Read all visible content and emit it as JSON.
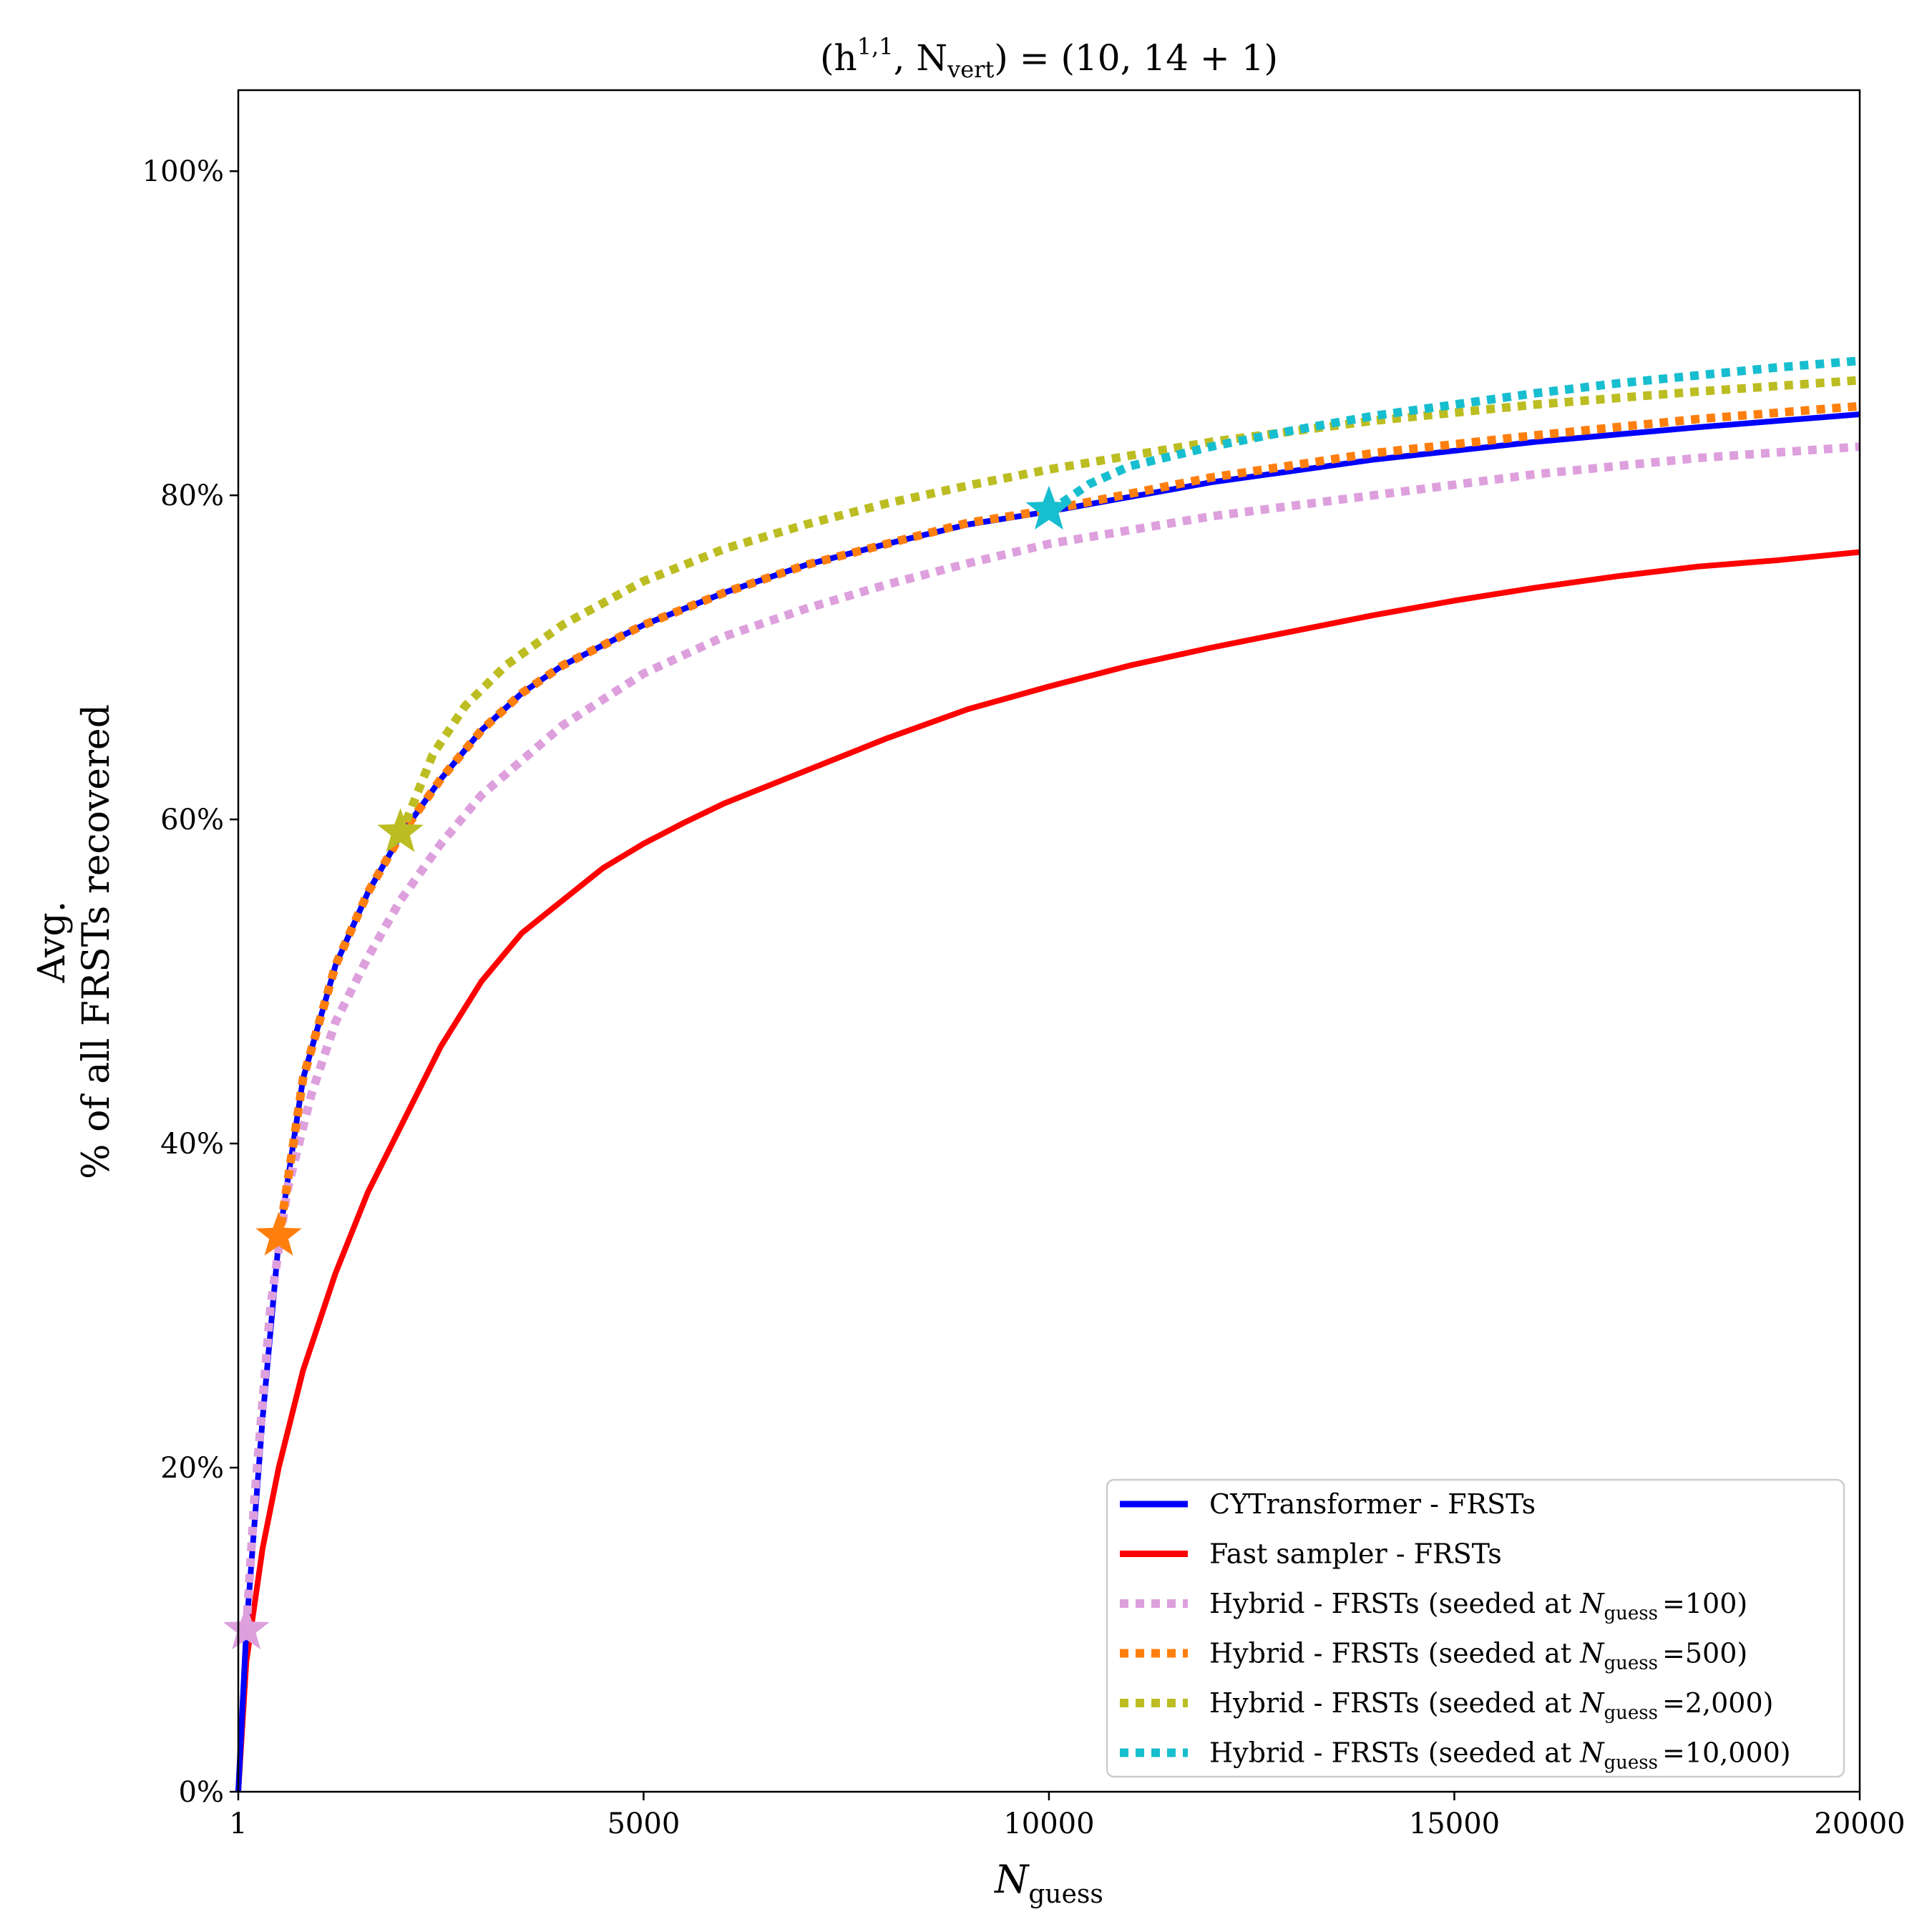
{
  "chart_data": {
    "type": "line",
    "title": {
      "open": "(h",
      "sup": "1,1",
      "mid": ", N",
      "sub": "vert",
      "close": ") = (10, 14 + 1)"
    },
    "xlabel": {
      "main": "N",
      "sub": "guess"
    },
    "ylabel": {
      "line1": "Avg.",
      "line2": "% of all FRSTs recovered"
    },
    "xlim": [
      1,
      20000
    ],
    "ylim": [
      0,
      105
    ],
    "x_ticks": [
      1,
      5000,
      10000,
      15000,
      20000
    ],
    "x_tick_labels": [
      "1",
      "5000",
      "10000",
      "15000",
      "20000"
    ],
    "y_ticks": [
      0,
      20,
      40,
      60,
      80,
      100
    ],
    "y_tick_labels": [
      "0%",
      "20%",
      "40%",
      "60%",
      "80%",
      "100%"
    ],
    "legend_position": "lower-right",
    "series": [
      {
        "name": "CYTransformer - FRSTs",
        "label_main": "CYTransformer - FRSTs",
        "color": "#0000ff",
        "style": "solid",
        "x": [
          1,
          100,
          300,
          500,
          800,
          1200,
          1600,
          2000,
          2500,
          3000,
          3500,
          4000,
          5000,
          6000,
          7000,
          8000,
          9000,
          10000,
          12000,
          14000,
          16000,
          18000,
          20000
        ],
        "y": [
          0,
          10,
          23,
          34,
          44,
          51,
          55.5,
          59,
          62.5,
          65.5,
          67.8,
          69.5,
          72,
          74,
          75.7,
          77,
          78.2,
          79,
          80.8,
          82.2,
          83.3,
          84.2,
          85
        ]
      },
      {
        "name": "Fast sampler - FRSTs",
        "label_main": "Fast sampler - FRSTs",
        "color": "#ff0000",
        "style": "solid",
        "x": [
          1,
          100,
          300,
          500,
          800,
          1200,
          1600,
          2000,
          2500,
          3000,
          3500,
          4000,
          4500,
          5000,
          5500,
          6000,
          7000,
          8000,
          9000,
          10000,
          11000,
          12000,
          13000,
          14000,
          15000,
          16000,
          17000,
          18000,
          19000,
          20000
        ],
        "y": [
          0,
          8,
          15,
          20,
          26,
          32,
          37,
          41,
          46,
          50,
          53,
          55,
          57,
          58.5,
          59.8,
          61,
          63,
          65,
          66.8,
          68.2,
          69.5,
          70.6,
          71.6,
          72.6,
          73.5,
          74.3,
          75,
          75.6,
          76,
          76.5
        ]
      },
      {
        "name": "Hybrid - FRSTs (seeded at N_guess =100)",
        "label_main": "Hybrid - FRSTs (seeded at ",
        "label_n": "N",
        "label_sub": "guess",
        "label_val": "=100)",
        "seed": 100,
        "color": "#dda0dd",
        "style": "dotted",
        "x": [
          100,
          200,
          400,
          600,
          900,
          1200,
          1600,
          2000,
          2500,
          3000,
          4000,
          5000,
          6000,
          7000,
          8000,
          9000,
          10000,
          12000,
          14000,
          16000,
          18000,
          20000
        ],
        "y": [
          10,
          18,
          30,
          37,
          43,
          47.5,
          51.5,
          55,
          58.5,
          61.5,
          65.8,
          69,
          71.3,
          73,
          74.5,
          75.8,
          77,
          78.7,
          80,
          81.3,
          82.3,
          83
        ]
      },
      {
        "name": "Hybrid - FRSTs (seeded at N_guess =500)",
        "label_main": "Hybrid - FRSTs (seeded at ",
        "label_n": "N",
        "label_sub": "guess",
        "label_val": "=500)",
        "seed": 500,
        "color": "#ff7f0e",
        "style": "dotted",
        "x": [
          500,
          800,
          1200,
          1600,
          2000,
          2500,
          3000,
          3500,
          4000,
          5000,
          6000,
          7000,
          8000,
          9000,
          10000,
          12000,
          14000,
          16000,
          18000,
          20000
        ],
        "y": [
          34,
          44,
          51,
          55.5,
          59,
          62.5,
          65.5,
          67.8,
          69.5,
          72,
          74,
          75.7,
          77,
          78.3,
          79.1,
          81.1,
          82.6,
          83.7,
          84.7,
          85.5
        ]
      },
      {
        "name": "Hybrid - FRSTs (seeded at N_guess =2,000)",
        "label_main": "Hybrid - FRSTs (seeded at ",
        "label_n": "N",
        "label_sub": "guess",
        "label_val": "=2,000)",
        "seed": 2000,
        "color": "#bcbd22",
        "style": "dotted",
        "x": [
          2000,
          2400,
          2800,
          3300,
          4000,
          5000,
          6000,
          7000,
          8000,
          9000,
          10000,
          12000,
          14000,
          16000,
          18000,
          20000
        ],
        "y": [
          59,
          64,
          67,
          69.5,
          72,
          74.7,
          76.7,
          78.2,
          79.5,
          80.6,
          81.6,
          83.3,
          84.6,
          85.6,
          86.4,
          87.1
        ]
      },
      {
        "name": "Hybrid - FRSTs (seeded at N_guess =10,000)",
        "label_main": "Hybrid - FRSTs (seeded at ",
        "label_n": "N",
        "label_sub": "guess",
        "label_val": "=10,000)",
        "seed": 10000,
        "color": "#17becf",
        "style": "dotted",
        "x": [
          10000,
          10500,
          11000,
          12000,
          13000,
          14000,
          15000,
          16000,
          17000,
          18000,
          19000,
          20000
        ],
        "y": [
          79,
          80.7,
          81.8,
          83,
          84,
          84.9,
          85.6,
          86.3,
          86.9,
          87.4,
          87.9,
          88.3
        ]
      }
    ],
    "seed_markers": [
      {
        "x": 100,
        "y": 10,
        "color": "#dda0dd"
      },
      {
        "x": 500,
        "y": 34.3,
        "color": "#ff7f0e"
      },
      {
        "x": 2000,
        "y": 59.2,
        "color": "#bcbd22"
      },
      {
        "x": 10000,
        "y": 79.1,
        "color": "#17becf"
      }
    ]
  }
}
